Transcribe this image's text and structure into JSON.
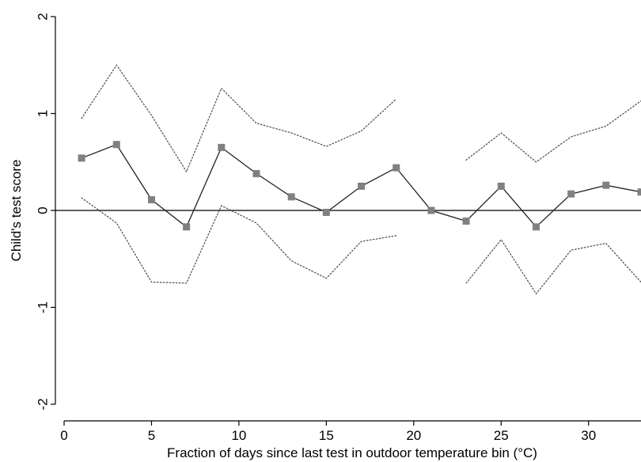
{
  "chart_data": {
    "type": "line",
    "xlabel": "Fraction of days since last test in outdoor temperature bin (°C)",
    "ylabel": "Child's test score",
    "xlim": [
      0,
      33
    ],
    "ylim": [
      -2.1,
      2.1
    ],
    "x_ticks": [
      0,
      5,
      10,
      15,
      20,
      25,
      30
    ],
    "y_ticks": [
      -2,
      -1,
      0,
      1,
      2
    ],
    "zero_line": true,
    "grid": false,
    "series": [
      {
        "role": "estimate",
        "color": "#808080",
        "marker": "square",
        "line_style": "solid",
        "points": [
          [
            1,
            0.54
          ],
          [
            3,
            0.68
          ],
          [
            5,
            0.11
          ],
          [
            7,
            -0.17
          ],
          [
            9,
            0.65
          ],
          [
            11,
            0.38
          ],
          [
            13,
            0.14
          ],
          [
            15,
            -0.02
          ],
          [
            17,
            0.25
          ],
          [
            19,
            0.44
          ],
          [
            21,
            0.0
          ],
          [
            23,
            -0.11
          ],
          [
            25,
            0.25
          ],
          [
            27,
            -0.17
          ],
          [
            29,
            0.17
          ],
          [
            31,
            0.26
          ],
          [
            33,
            0.19
          ]
        ]
      },
      {
        "role": "upper-bound",
        "color": "#555555",
        "line_style": "dotted",
        "segments": [
          [
            [
              1,
              0.95
            ],
            [
              3,
              1.5
            ],
            [
              5,
              0.98
            ],
            [
              7,
              0.4
            ],
            [
              9,
              1.26
            ],
            [
              11,
              0.9
            ],
            [
              13,
              0.8
            ],
            [
              15,
              0.66
            ],
            [
              17,
              0.82
            ],
            [
              19,
              1.15
            ]
          ],
          [
            [
              23,
              0.52
            ],
            [
              25,
              0.8
            ],
            [
              27,
              0.5
            ],
            [
              29,
              0.76
            ],
            [
              31,
              0.87
            ],
            [
              33,
              1.13
            ]
          ]
        ]
      },
      {
        "role": "lower-bound",
        "color": "#555555",
        "line_style": "dotted",
        "segments": [
          [
            [
              1,
              0.13
            ],
            [
              3,
              -0.13
            ],
            [
              5,
              -0.74
            ],
            [
              7,
              -0.75
            ],
            [
              9,
              0.05
            ],
            [
              11,
              -0.13
            ],
            [
              13,
              -0.52
            ],
            [
              15,
              -0.7
            ],
            [
              17,
              -0.32
            ],
            [
              19,
              -0.26
            ]
          ],
          [
            [
              23,
              -0.75
            ],
            [
              25,
              -0.3
            ],
            [
              27,
              -0.86
            ],
            [
              29,
              -0.41
            ],
            [
              31,
              -0.34
            ],
            [
              33,
              -0.74
            ]
          ]
        ]
      }
    ]
  }
}
